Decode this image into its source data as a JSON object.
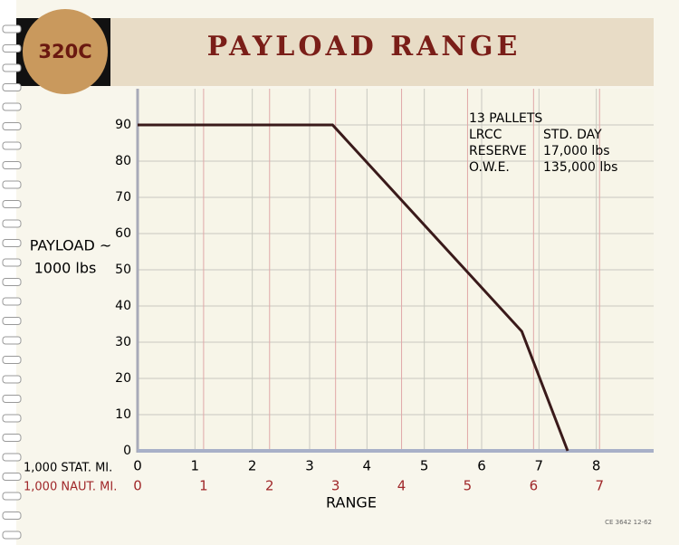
{
  "badge": "320C",
  "chart_data": {
    "type": "line",
    "title": "PAYLOAD RANGE",
    "ylabel": [
      "PAYLOAD ~",
      "1000 lbs"
    ],
    "xlabel": "RANGE",
    "x_axis_name": "1,000 STAT. MI.",
    "x2_axis_name": "1,000 NAUT. MI.",
    "x": [
      0,
      3.4,
      6.7,
      7.5
    ],
    "series": [
      {
        "color": "#3a1a1a",
        "values": [
          90,
          90,
          33,
          0
        ]
      }
    ],
    "xlim": [
      0,
      9
    ],
    "xticks": [
      0,
      1,
      2,
      3,
      4,
      5,
      6,
      7,
      8
    ],
    "x2lim": [
      0,
      7.82
    ],
    "x2ticks": [
      0,
      1,
      2,
      3,
      4,
      5,
      6,
      7
    ],
    "ylim": [
      0,
      100
    ],
    "yticks": [
      0,
      10,
      20,
      30,
      40,
      50,
      60,
      70,
      80,
      90
    ],
    "grid": true,
    "annotations": [
      [
        "13 PALLETS"
      ],
      [
        "LRCC",
        "STD. DAY"
      ],
      [
        "RESERVE",
        "17,000 lbs"
      ],
      [
        "O.W.E.",
        "135,000 lbs"
      ]
    ]
  },
  "footer": "CE 3642  12-62"
}
